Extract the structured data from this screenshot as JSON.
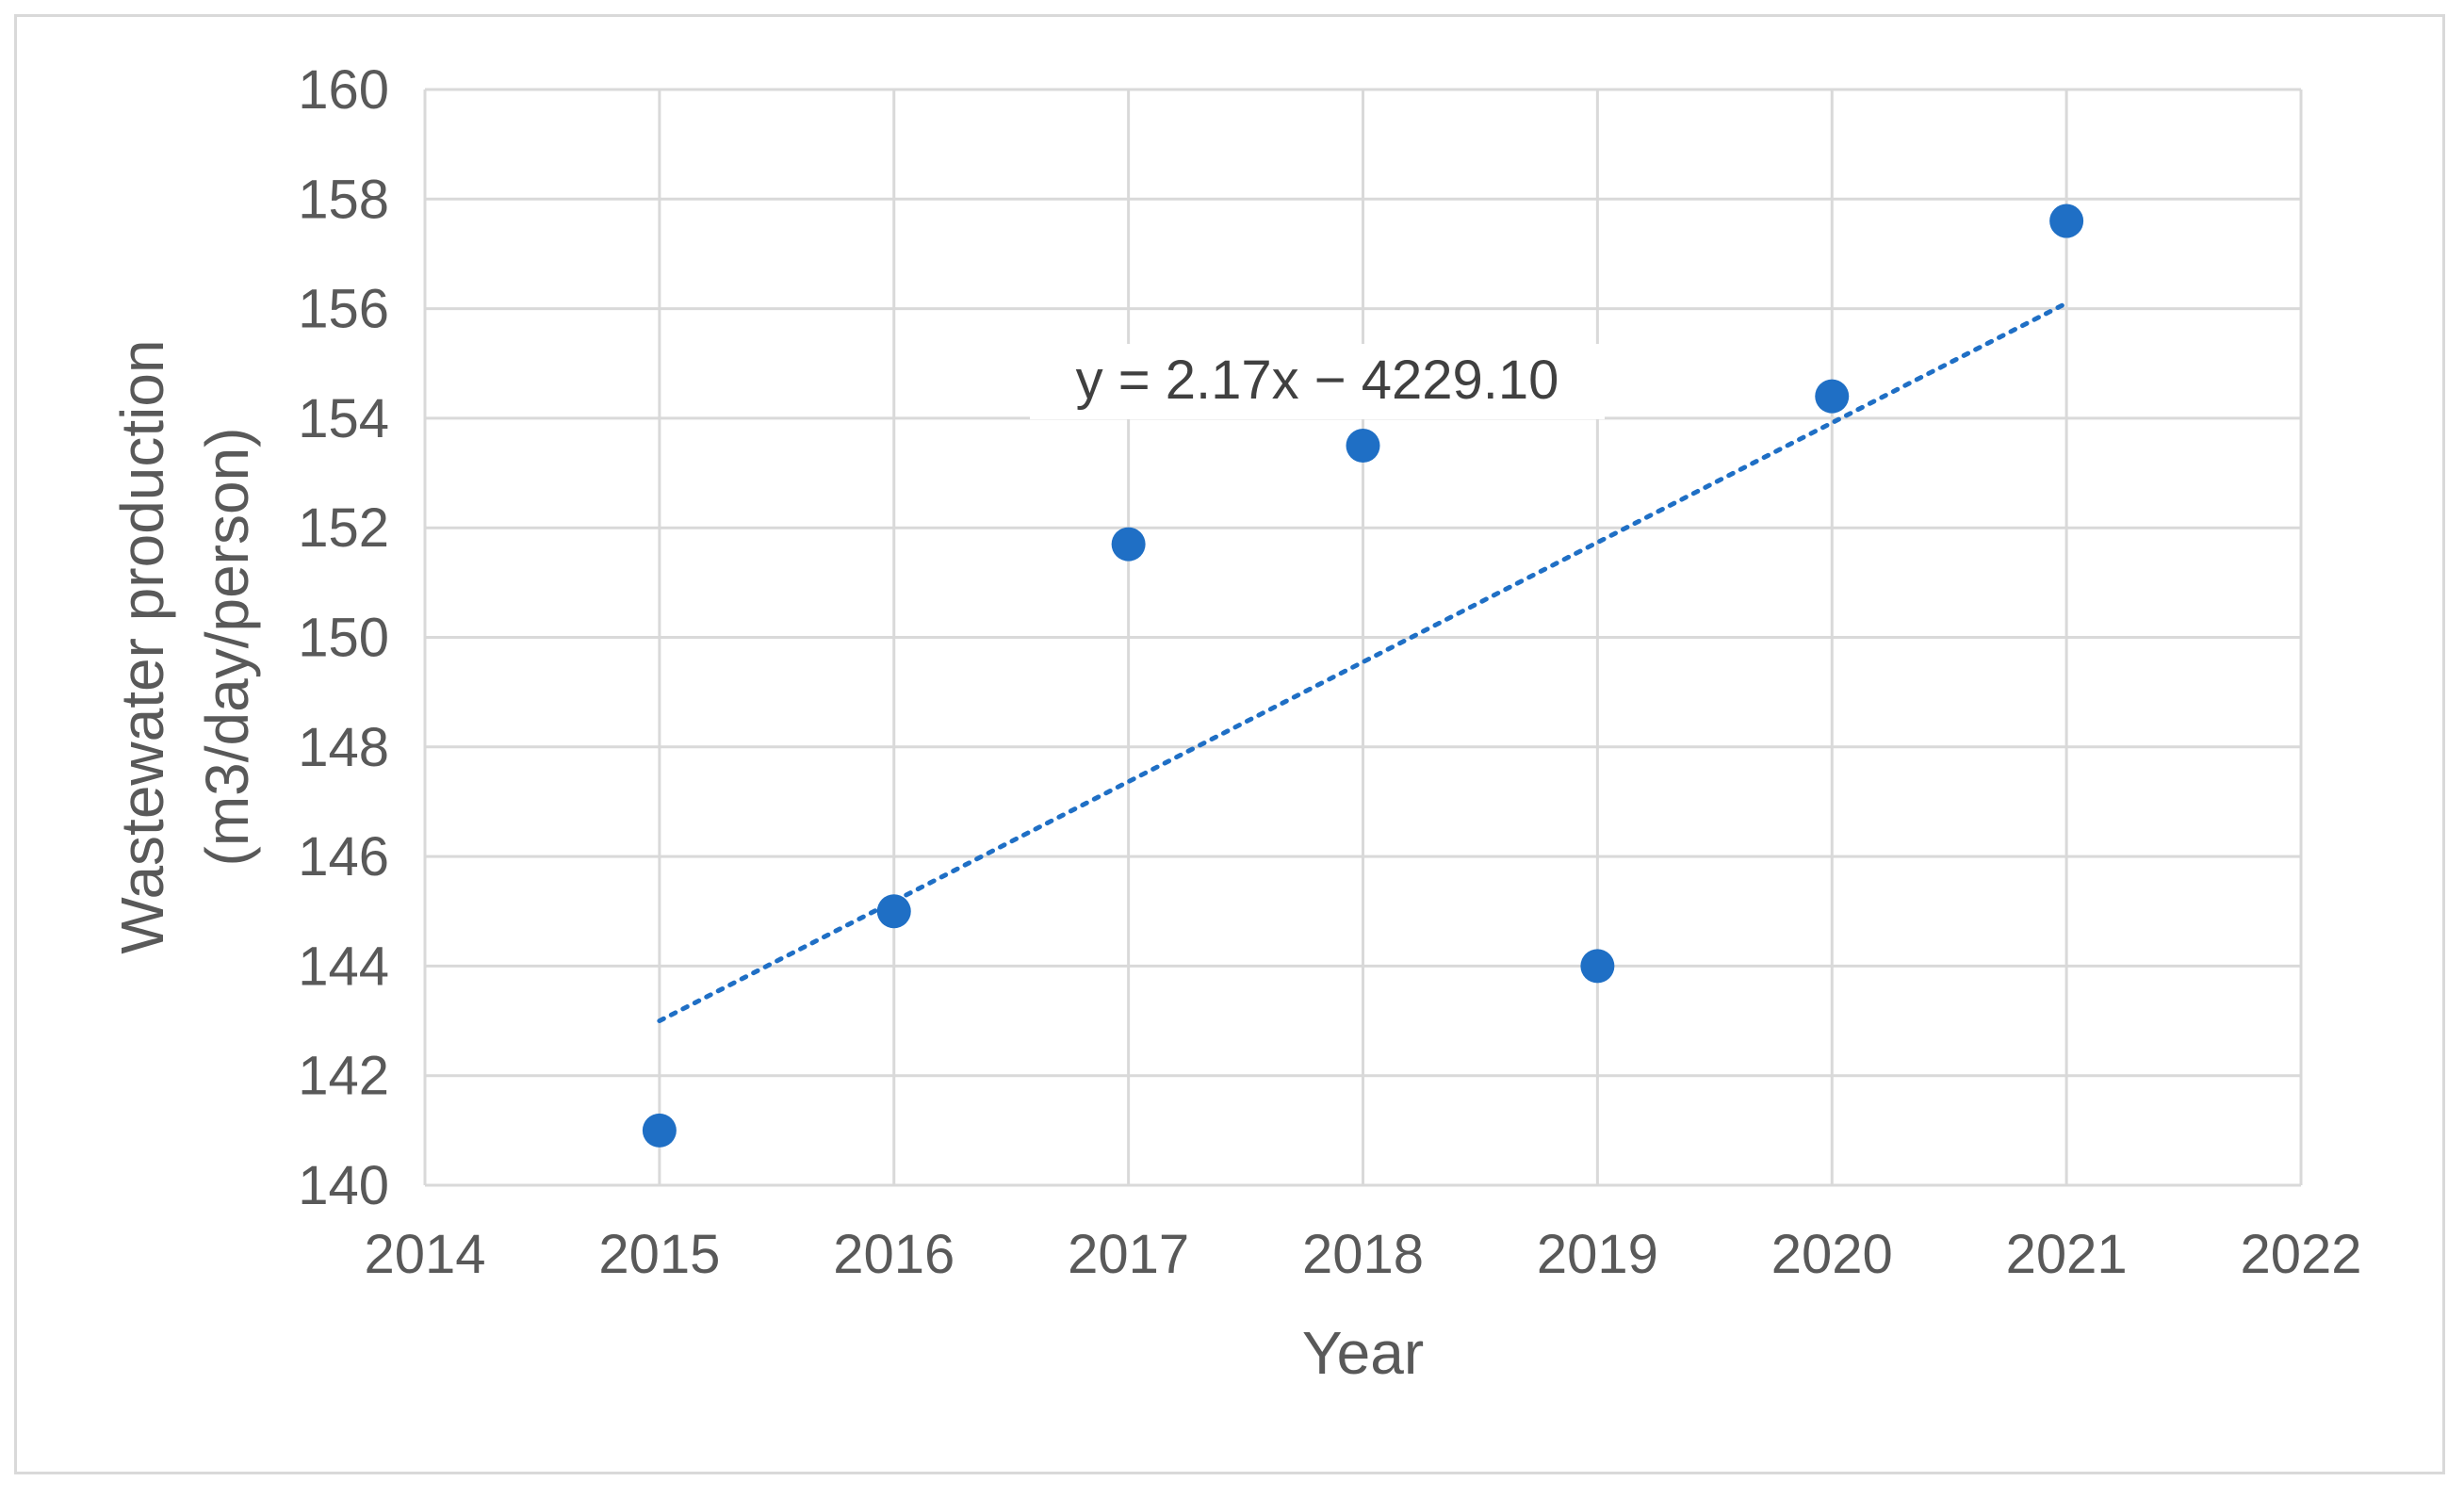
{
  "chart_data": {
    "type": "scatter",
    "xlabel": "Year",
    "ylabel": [
      "Wastewater production",
      "(m3/day/person)"
    ],
    "xlim": [
      2014,
      2022
    ],
    "ylim": [
      140,
      160
    ],
    "xticks": [
      2014,
      2015,
      2016,
      2017,
      2018,
      2019,
      2020,
      2021,
      2022
    ],
    "yticks": [
      140,
      142,
      144,
      146,
      148,
      150,
      152,
      154,
      156,
      158,
      160
    ],
    "grid": true,
    "series": [
      {
        "x": [
          2015,
          2016,
          2017,
          2018,
          2019,
          2020,
          2021
        ],
        "y": [
          141.0,
          145.0,
          151.7,
          153.5,
          144.0,
          154.4,
          157.6
        ],
        "color": "#1f6fc5"
      }
    ],
    "trendline": {
      "style": "dotted",
      "color": "#1f6fc5",
      "x_range": [
        2015,
        2021
      ],
      "y_range": [
        143.0,
        156.1
      ],
      "equation": "y = 2.17x − 4229.10"
    }
  }
}
